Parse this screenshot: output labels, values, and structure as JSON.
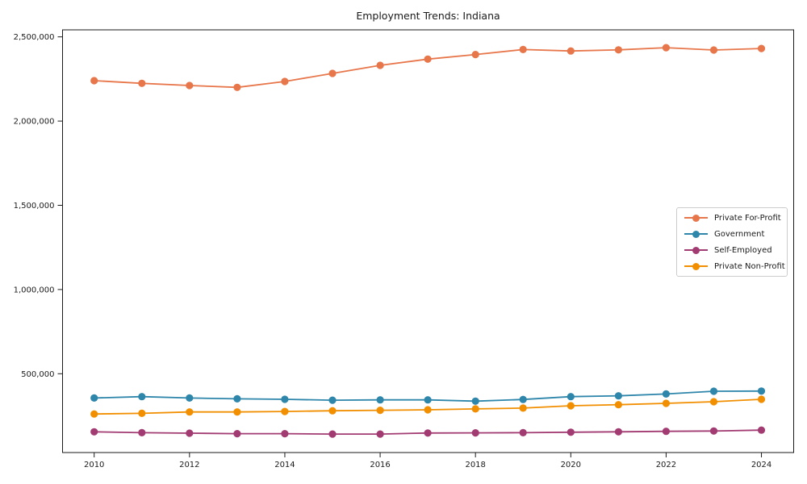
{
  "chart_data": {
    "type": "line",
    "title": "Employment Trends: Indiana",
    "xlabel": "",
    "ylabel": "",
    "grid": false,
    "legend_position": "center right",
    "xlim": [
      2009.3,
      2024.7
    ],
    "ylim": [
      32000,
      2542000
    ],
    "x": [
      2010,
      2011,
      2012,
      2013,
      2014,
      2015,
      2016,
      2017,
      2018,
      2019,
      2020,
      2021,
      2022,
      2023,
      2024
    ],
    "x_tick_labels": [
      "2010",
      "2012",
      "2014",
      "2016",
      "2018",
      "2020",
      "2022",
      "2024"
    ],
    "y_tick_values": [
      500000,
      1000000,
      1500000,
      2000000,
      2500000
    ],
    "y_tick_labels": [
      "500,000",
      "1,000,000",
      "1,500,000",
      "2,000,000",
      "2,500,000"
    ],
    "marker": "circle",
    "series": [
      {
        "name": "Private For-Profit",
        "color": "#E8764B",
        "values": [
          2240000,
          2224000,
          2211000,
          2200000,
          2235000,
          2283000,
          2331000,
          2368000,
          2395000,
          2425000,
          2416000,
          2423000,
          2436000,
          2422000,
          2431000
        ]
      },
      {
        "name": "Government",
        "color": "#2E86AB",
        "values": [
          356000,
          364000,
          356000,
          351000,
          348000,
          343000,
          345000,
          345000,
          337000,
          347000,
          364000,
          369000,
          380000,
          396000,
          397000
        ]
      },
      {
        "name": "Self-Employed",
        "color": "#A23B72",
        "values": [
          155000,
          150000,
          147000,
          144000,
          144000,
          142000,
          142000,
          148000,
          149000,
          150000,
          153000,
          155000,
          158000,
          160000,
          165000
        ]
      },
      {
        "name": "Private Non-Profit",
        "color": "#F18F01",
        "values": [
          261000,
          265000,
          273000,
          273000,
          276000,
          280000,
          283000,
          286000,
          291000,
          296000,
          310000,
          316000,
          324000,
          334000,
          348000
        ]
      }
    ]
  }
}
